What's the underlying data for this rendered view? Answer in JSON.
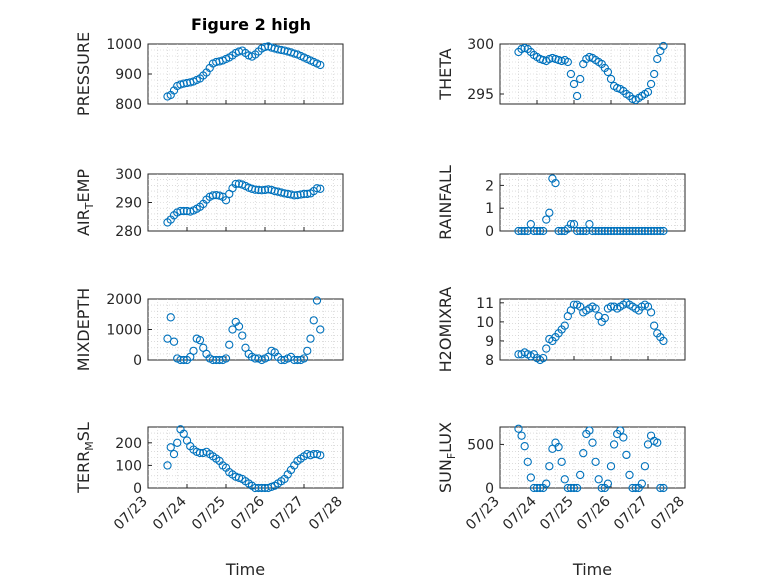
{
  "figure": {
    "title": "Figure 2 high"
  },
  "colors": {
    "series": "#0072bd",
    "axes": "#262626",
    "grid": "#c8c8c8"
  },
  "chart_data": [
    {
      "type": "scatter",
      "id": "pressure",
      "title": "Figure 2 high",
      "ylabel": {
        "main": "PRESSURE"
      },
      "xlabel": "",
      "xlim": [
        "07/23",
        "07/28"
      ],
      "xticks": [],
      "ylim": [
        800,
        1000
      ],
      "yticks": [
        "800",
        "900",
        "1000"
      ],
      "grid": true,
      "x": [
        "07/23 12:00",
        "07/23 14:00",
        "07/23 16:00",
        "07/23 18:00",
        "07/23 20:00",
        "07/23 22:00",
        "07/24 00:00",
        "07/24 02:00",
        "07/24 04:00",
        "07/24 06:00",
        "07/24 08:00",
        "07/24 10:00",
        "07/24 12:00",
        "07/24 14:00",
        "07/24 16:00",
        "07/24 18:00",
        "07/24 20:00",
        "07/24 22:00",
        "07/25 00:00",
        "07/25 02:00",
        "07/25 04:00",
        "07/25 06:00",
        "07/25 08:00",
        "07/25 10:00",
        "07/25 12:00",
        "07/25 14:00",
        "07/25 16:00",
        "07/25 18:00",
        "07/25 20:00",
        "07/25 22:00",
        "07/26 00:00",
        "07/26 02:00",
        "07/26 04:00",
        "07/26 06:00",
        "07/26 08:00",
        "07/26 10:00",
        "07/26 12:00",
        "07/26 14:00",
        "07/26 16:00",
        "07/26 18:00",
        "07/26 20:00",
        "07/26 22:00",
        "07/27 00:00",
        "07/27 02:00",
        "07/27 04:00",
        "07/27 06:00",
        "07/27 08:00",
        "07/27 10:00"
      ],
      "y": [
        825,
        830,
        845,
        860,
        865,
        868,
        870,
        872,
        875,
        880,
        885,
        895,
        905,
        920,
        935,
        940,
        942,
        945,
        950,
        955,
        962,
        970,
        975,
        978,
        970,
        962,
        958,
        965,
        975,
        985,
        990,
        992,
        988,
        985,
        982,
        980,
        978,
        975,
        972,
        968,
        965,
        960,
        955,
        950,
        945,
        940,
        935,
        930
      ]
    },
    {
      "type": "scatter",
      "id": "theta",
      "ylabel": {
        "main": "THETA"
      },
      "xlabel": "",
      "xlim": [
        "07/23",
        "07/28"
      ],
      "xticks": [],
      "ylim": [
        294,
        300
      ],
      "yticks": [
        "295",
        "300"
      ],
      "grid": true,
      "x": [
        "07/23 12:00",
        "07/23 14:00",
        "07/23 16:00",
        "07/23 18:00",
        "07/23 20:00",
        "07/23 22:00",
        "07/24 00:00",
        "07/24 02:00",
        "07/24 04:00",
        "07/24 06:00",
        "07/24 08:00",
        "07/24 10:00",
        "07/24 12:00",
        "07/24 14:00",
        "07/24 16:00",
        "07/24 18:00",
        "07/24 20:00",
        "07/24 22:00",
        "07/25 00:00",
        "07/25 02:00",
        "07/25 04:00",
        "07/25 06:00",
        "07/25 08:00",
        "07/25 10:00",
        "07/25 12:00",
        "07/25 14:00",
        "07/25 16:00",
        "07/25 18:00",
        "07/25 20:00",
        "07/25 22:00",
        "07/26 00:00",
        "07/26 02:00",
        "07/26 04:00",
        "07/26 06:00",
        "07/26 08:00",
        "07/26 10:00",
        "07/26 12:00",
        "07/26 14:00",
        "07/26 16:00",
        "07/26 18:00",
        "07/26 20:00",
        "07/26 22:00",
        "07/27 00:00",
        "07/27 02:00",
        "07/27 04:00",
        "07/27 06:00",
        "07/27 08:00",
        "07/27 10:00"
      ],
      "y": [
        299.2,
        299.5,
        299.6,
        299.5,
        299.2,
        298.9,
        298.7,
        298.5,
        298.4,
        298.3,
        298.5,
        298.6,
        298.5,
        298.4,
        298.3,
        298.4,
        298.2,
        297.0,
        296.0,
        294.8,
        296.5,
        298.0,
        298.5,
        298.7,
        298.6,
        298.4,
        298.2,
        298.0,
        297.6,
        297.2,
        296.5,
        295.8,
        295.6,
        295.5,
        295.3,
        295.0,
        294.8,
        294.5,
        294.4,
        294.6,
        294.8,
        295.0,
        295.2,
        296.0,
        297.0,
        298.5,
        299.3,
        299.8
      ]
    },
    {
      "type": "scatter",
      "id": "air_temp",
      "ylabel": {
        "main": "AIR",
        "sub": "T",
        "rest": "EMP"
      },
      "xlabel": "",
      "xlim": [
        "07/23",
        "07/28"
      ],
      "xticks": [],
      "ylim": [
        280,
        300
      ],
      "yticks": [
        "280",
        "290",
        "300"
      ],
      "grid": true,
      "x": [
        "07/23 12:00",
        "07/23 14:00",
        "07/23 16:00",
        "07/23 18:00",
        "07/23 20:00",
        "07/23 22:00",
        "07/24 00:00",
        "07/24 02:00",
        "07/24 04:00",
        "07/24 06:00",
        "07/24 08:00",
        "07/24 10:00",
        "07/24 12:00",
        "07/24 14:00",
        "07/24 16:00",
        "07/24 18:00",
        "07/24 20:00",
        "07/24 22:00",
        "07/25 00:00",
        "07/25 02:00",
        "07/25 04:00",
        "07/25 06:00",
        "07/25 08:00",
        "07/25 10:00",
        "07/25 12:00",
        "07/25 14:00",
        "07/25 16:00",
        "07/25 18:00",
        "07/25 20:00",
        "07/25 22:00",
        "07/26 00:00",
        "07/26 02:00",
        "07/26 04:00",
        "07/26 06:00",
        "07/26 08:00",
        "07/26 10:00",
        "07/26 12:00",
        "07/26 14:00",
        "07/26 16:00",
        "07/26 18:00",
        "07/26 20:00",
        "07/26 22:00",
        "07/27 00:00",
        "07/27 02:00",
        "07/27 04:00",
        "07/27 06:00",
        "07/27 08:00",
        "07/27 10:00"
      ],
      "y": [
        283,
        284,
        285.5,
        286.5,
        287,
        287,
        287,
        286.8,
        287.2,
        287.8,
        288.5,
        289.5,
        291,
        292,
        292.5,
        292.6,
        292.4,
        292,
        290.8,
        293,
        295,
        296.5,
        296.6,
        296.3,
        295.8,
        295.2,
        294.8,
        294.5,
        294.4,
        294.3,
        294.4,
        294.6,
        294.4,
        294,
        293.8,
        293.5,
        293.2,
        293,
        292.8,
        292.5,
        292.6,
        292.8,
        293,
        293,
        293.2,
        294,
        295,
        294.8
      ]
    },
    {
      "type": "scatter",
      "id": "rainfall",
      "ylabel": {
        "main": "RAINFALL"
      },
      "xlabel": "",
      "xlim": [
        "07/23",
        "07/28"
      ],
      "xticks": [],
      "ylim": [
        0,
        2.5
      ],
      "yticks": [
        "0",
        "1",
        "2"
      ],
      "grid": true,
      "x": [
        "07/23 12:00",
        "07/23 14:00",
        "07/23 16:00",
        "07/23 18:00",
        "07/23 20:00",
        "07/23 22:00",
        "07/24 00:00",
        "07/24 02:00",
        "07/24 04:00",
        "07/24 06:00",
        "07/24 08:00",
        "07/24 10:00",
        "07/24 12:00",
        "07/24 14:00",
        "07/24 16:00",
        "07/24 18:00",
        "07/24 20:00",
        "07/24 22:00",
        "07/25 00:00",
        "07/25 02:00",
        "07/25 04:00",
        "07/25 06:00",
        "07/25 08:00",
        "07/25 10:00",
        "07/25 12:00",
        "07/25 14:00",
        "07/25 16:00",
        "07/25 18:00",
        "07/25 20:00",
        "07/25 22:00",
        "07/26 00:00",
        "07/26 02:00",
        "07/26 04:00",
        "07/26 06:00",
        "07/26 08:00",
        "07/26 10:00",
        "07/26 12:00",
        "07/26 14:00",
        "07/26 16:00",
        "07/26 18:00",
        "07/26 20:00",
        "07/26 22:00",
        "07/27 00:00",
        "07/27 02:00",
        "07/27 04:00",
        "07/27 06:00",
        "07/27 08:00",
        "07/27 10:00"
      ],
      "y": [
        0,
        0,
        0,
        0,
        0.3,
        0,
        0,
        0,
        0,
        0.5,
        0.8,
        2.3,
        2.1,
        0,
        0,
        0,
        0.1,
        0.3,
        0.3,
        0,
        0,
        0,
        0,
        0.3,
        0,
        0,
        0,
        0,
        0,
        0,
        0,
        0,
        0,
        0,
        0,
        0,
        0,
        0,
        0,
        0,
        0,
        0,
        0,
        0,
        0,
        0,
        0,
        0
      ]
    },
    {
      "type": "scatter",
      "id": "mixdepth",
      "ylabel": {
        "main": "MIXDEPTH"
      },
      "xlabel": "",
      "xlim": [
        "07/23",
        "07/28"
      ],
      "xticks": [],
      "ylim": [
        0,
        2000
      ],
      "yticks": [
        "0",
        "1000",
        "2000"
      ],
      "grid": true,
      "x": [
        "07/23 12:00",
        "07/23 14:00",
        "07/23 16:00",
        "07/23 18:00",
        "07/23 20:00",
        "07/23 22:00",
        "07/24 00:00",
        "07/24 02:00",
        "07/24 04:00",
        "07/24 06:00",
        "07/24 08:00",
        "07/24 10:00",
        "07/24 12:00",
        "07/24 14:00",
        "07/24 16:00",
        "07/24 18:00",
        "07/24 20:00",
        "07/24 22:00",
        "07/25 00:00",
        "07/25 02:00",
        "07/25 04:00",
        "07/25 06:00",
        "07/25 08:00",
        "07/25 10:00",
        "07/25 12:00",
        "07/25 14:00",
        "07/25 16:00",
        "07/25 18:00",
        "07/25 20:00",
        "07/25 22:00",
        "07/26 00:00",
        "07/26 02:00",
        "07/26 04:00",
        "07/26 06:00",
        "07/26 08:00",
        "07/26 10:00",
        "07/26 12:00",
        "07/26 14:00",
        "07/26 16:00",
        "07/26 18:00",
        "07/26 20:00",
        "07/26 22:00",
        "07/27 00:00",
        "07/27 02:00",
        "07/27 04:00",
        "07/27 06:00",
        "07/27 08:00",
        "07/27 10:00"
      ],
      "y": [
        700,
        1400,
        600,
        50,
        0,
        0,
        0,
        100,
        300,
        700,
        650,
        400,
        200,
        50,
        0,
        0,
        0,
        0,
        50,
        500,
        1000,
        1250,
        1100,
        800,
        400,
        200,
        100,
        50,
        50,
        0,
        50,
        100,
        300,
        250,
        100,
        0,
        0,
        50,
        100,
        0,
        0,
        0,
        50,
        300,
        700,
        1300,
        1950,
        1000
      ]
    },
    {
      "type": "scatter",
      "id": "h2omixra",
      "ylabel": {
        "main": "H2OMIXRA"
      },
      "xlabel": "",
      "xlim": [
        "07/23",
        "07/28"
      ],
      "xticks": [],
      "ylim": [
        8,
        11.2
      ],
      "yticks": [
        "8",
        "9",
        "10",
        "11"
      ],
      "grid": true,
      "x": [
        "07/23 12:00",
        "07/23 14:00",
        "07/23 16:00",
        "07/23 18:00",
        "07/23 20:00",
        "07/23 22:00",
        "07/24 00:00",
        "07/24 02:00",
        "07/24 04:00",
        "07/24 06:00",
        "07/24 08:00",
        "07/24 10:00",
        "07/24 12:00",
        "07/24 14:00",
        "07/24 16:00",
        "07/24 18:00",
        "07/24 20:00",
        "07/24 22:00",
        "07/25 00:00",
        "07/25 02:00",
        "07/25 04:00",
        "07/25 06:00",
        "07/25 08:00",
        "07/25 10:00",
        "07/25 12:00",
        "07/25 14:00",
        "07/25 16:00",
        "07/25 18:00",
        "07/25 20:00",
        "07/25 22:00",
        "07/26 00:00",
        "07/26 02:00",
        "07/26 04:00",
        "07/26 06:00",
        "07/26 08:00",
        "07/26 10:00",
        "07/26 12:00",
        "07/26 14:00",
        "07/26 16:00",
        "07/26 18:00",
        "07/26 20:00",
        "07/26 22:00",
        "07/27 00:00",
        "07/27 02:00",
        "07/27 04:00",
        "07/27 06:00",
        "07/27 08:00",
        "07/27 10:00"
      ],
      "y": [
        8.3,
        8.3,
        8.4,
        8.3,
        8.2,
        8.3,
        8.1,
        8.0,
        8.1,
        8.6,
        9.1,
        9.0,
        9.2,
        9.4,
        9.6,
        9.8,
        10.3,
        10.6,
        10.9,
        10.9,
        10.8,
        10.5,
        10.6,
        10.7,
        10.8,
        10.7,
        10.3,
        10.0,
        10.2,
        10.7,
        10.8,
        10.8,
        10.7,
        10.8,
        10.9,
        11.0,
        10.9,
        10.8,
        10.7,
        10.6,
        10.8,
        10.9,
        10.8,
        10.5,
        9.8,
        9.4,
        9.2,
        9.0
      ]
    },
    {
      "type": "scatter",
      "id": "terr_msl",
      "ylabel": {
        "main": "TERR",
        "sub": "M",
        "rest": "SL"
      },
      "xlabel": "Time",
      "xlim": [
        "07/23",
        "07/28"
      ],
      "xticks": [
        "07/23",
        "07/24",
        "07/25",
        "07/26",
        "07/27",
        "07/28"
      ],
      "ylim": [
        0,
        270
      ],
      "yticks": [
        "0",
        "100",
        "200"
      ],
      "grid": true,
      "x": [
        "07/23 12:00",
        "07/23 14:00",
        "07/23 16:00",
        "07/23 18:00",
        "07/23 20:00",
        "07/23 22:00",
        "07/24 00:00",
        "07/24 02:00",
        "07/24 04:00",
        "07/24 06:00",
        "07/24 08:00",
        "07/24 10:00",
        "07/24 12:00",
        "07/24 14:00",
        "07/24 16:00",
        "07/24 18:00",
        "07/24 20:00",
        "07/24 22:00",
        "07/25 00:00",
        "07/25 02:00",
        "07/25 04:00",
        "07/25 06:00",
        "07/25 08:00",
        "07/25 10:00",
        "07/25 12:00",
        "07/25 14:00",
        "07/25 16:00",
        "07/25 18:00",
        "07/25 20:00",
        "07/25 22:00",
        "07/26 00:00",
        "07/26 02:00",
        "07/26 04:00",
        "07/26 06:00",
        "07/26 08:00",
        "07/26 10:00",
        "07/26 12:00",
        "07/26 14:00",
        "07/26 16:00",
        "07/26 18:00",
        "07/26 20:00",
        "07/26 22:00",
        "07/27 00:00",
        "07/27 02:00",
        "07/27 04:00",
        "07/27 06:00",
        "07/27 08:00",
        "07/27 10:00"
      ],
      "y": [
        100,
        180,
        150,
        200,
        260,
        240,
        210,
        185,
        170,
        160,
        155,
        155,
        160,
        150,
        140,
        130,
        120,
        100,
        90,
        70,
        60,
        50,
        45,
        40,
        30,
        20,
        10,
        0,
        0,
        0,
        0,
        0,
        5,
        10,
        20,
        30,
        40,
        60,
        80,
        100,
        120,
        130,
        140,
        150,
        145,
        150,
        150,
        145
      ]
    },
    {
      "type": "scatter",
      "id": "sun_flux",
      "ylabel": {
        "main": "SUN",
        "sub": "F",
        "rest": "LUX"
      },
      "xlabel": "Time",
      "xlim": [
        "07/23",
        "07/28"
      ],
      "xticks": [
        "07/23",
        "07/24",
        "07/25",
        "07/26",
        "07/27",
        "07/28"
      ],
      "ylim": [
        0,
        700
      ],
      "yticks": [
        "0",
        "500"
      ],
      "grid": true,
      "x": [
        "07/23 12:00",
        "07/23 14:00",
        "07/23 16:00",
        "07/23 18:00",
        "07/23 20:00",
        "07/23 22:00",
        "07/24 00:00",
        "07/24 02:00",
        "07/24 04:00",
        "07/24 06:00",
        "07/24 08:00",
        "07/24 10:00",
        "07/24 12:00",
        "07/24 14:00",
        "07/24 16:00",
        "07/24 18:00",
        "07/24 20:00",
        "07/24 22:00",
        "07/25 00:00",
        "07/25 02:00",
        "07/25 04:00",
        "07/25 06:00",
        "07/25 08:00",
        "07/25 10:00",
        "07/25 12:00",
        "07/25 14:00",
        "07/25 16:00",
        "07/25 18:00",
        "07/25 20:00",
        "07/25 22:00",
        "07/26 00:00",
        "07/26 02:00",
        "07/26 04:00",
        "07/26 06:00",
        "07/26 08:00",
        "07/26 10:00",
        "07/26 12:00",
        "07/26 14:00",
        "07/26 16:00",
        "07/26 18:00",
        "07/26 20:00",
        "07/26 22:00",
        "07/27 00:00",
        "07/27 02:00",
        "07/27 04:00",
        "07/27 06:00",
        "07/27 08:00",
        "07/27 10:00"
      ],
      "y": [
        680,
        600,
        480,
        300,
        120,
        0,
        0,
        0,
        0,
        50,
        250,
        450,
        520,
        470,
        300,
        100,
        0,
        0,
        0,
        0,
        150,
        400,
        620,
        660,
        520,
        300,
        100,
        0,
        0,
        50,
        250,
        500,
        620,
        660,
        580,
        380,
        150,
        0,
        0,
        0,
        50,
        250,
        500,
        600,
        540,
        520,
        0,
        0
      ]
    }
  ]
}
